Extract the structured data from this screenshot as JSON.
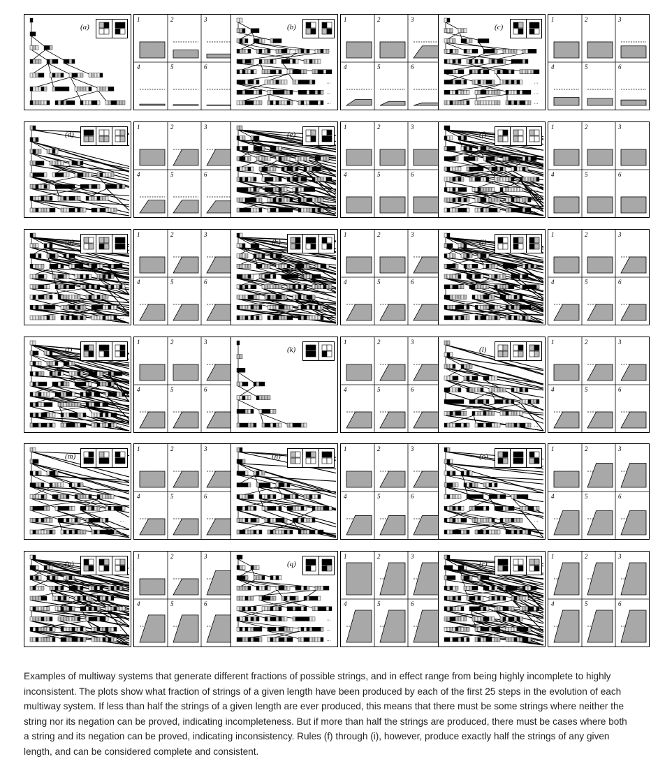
{
  "panels": [
    {
      "label": "(a)",
      "nrules": 2,
      "tree": "sparse",
      "curves": [
        [
          1.0
        ],
        [
          0.5
        ],
        [
          0.25
        ],
        [
          0.08
        ],
        [
          0.05
        ],
        [
          0.03
        ]
      ],
      "step": [
        false,
        false,
        false,
        false,
        false,
        false
      ]
    },
    {
      "label": "(b)",
      "nrules": 2,
      "tree": "medium",
      "curves": [
        [
          1.0
        ],
        [
          1.0
        ],
        [
          0.75
        ],
        [
          0.37
        ],
        [
          0.25
        ],
        [
          0.16
        ]
      ],
      "step": [
        false,
        false,
        true,
        true,
        true,
        true
      ]
    },
    {
      "label": "(c)",
      "nrules": 2,
      "tree": "medium",
      "curves": [
        [
          1.0
        ],
        [
          1.0
        ],
        [
          0.75
        ],
        [
          0.5
        ],
        [
          0.44
        ],
        [
          0.34
        ]
      ],
      "step": [
        false,
        false,
        false,
        false,
        false,
        false
      ]
    },
    {
      "label": "(d)",
      "nrules": 3,
      "tree": "fan",
      "curves": [
        [
          1.0
        ],
        [
          1.0
        ],
        [
          1.0
        ],
        [
          0.8
        ],
        [
          0.8
        ],
        [
          0.75
        ]
      ],
      "step": [
        false,
        true,
        true,
        true,
        true,
        true
      ]
    },
    {
      "label": "(e)",
      "nrules": 2,
      "tree": "dense",
      "curves": [
        [
          1.0
        ],
        [
          1.0
        ],
        [
          1.0
        ],
        [
          1.0
        ],
        [
          1.0
        ],
        [
          1.0
        ]
      ],
      "step": [
        false,
        false,
        false,
        false,
        false,
        false
      ]
    },
    {
      "label": "(f)",
      "nrules": 3,
      "tree": "dense",
      "curves": [
        [
          1.0
        ],
        [
          1.0
        ],
        [
          1.0
        ],
        [
          1.0
        ],
        [
          1.0
        ],
        [
          1.0
        ]
      ],
      "step": [
        false,
        false,
        false,
        false,
        false,
        false
      ]
    },
    {
      "label": "(g)",
      "nrules": 3,
      "tree": "dense",
      "curves": [
        [
          1.0
        ],
        [
          1.0
        ],
        [
          1.0
        ],
        [
          1.0
        ],
        [
          1.0
        ],
        [
          1.0
        ]
      ],
      "step": [
        false,
        true,
        true,
        true,
        true,
        true
      ]
    },
    {
      "label": "(h)",
      "nrules": 3,
      "tree": "dense",
      "curves": [
        [
          1.0
        ],
        [
          1.0
        ],
        [
          1.0
        ],
        [
          1.0
        ],
        [
          1.0
        ],
        [
          1.0
        ]
      ],
      "step": [
        false,
        false,
        true,
        true,
        true,
        true
      ]
    },
    {
      "label": "(i)",
      "nrules": 3,
      "tree": "dense",
      "curves": [
        [
          1.0
        ],
        [
          1.0
        ],
        [
          1.0
        ],
        [
          1.0
        ],
        [
          1.0
        ],
        [
          1.0
        ]
      ],
      "step": [
        false,
        false,
        true,
        true,
        true,
        true
      ]
    },
    {
      "label": "(j)",
      "nrules": 3,
      "tree": "dense",
      "curves": [
        [
          1.0
        ],
        [
          1.0
        ],
        [
          1.0
        ],
        [
          1.0
        ],
        [
          1.0
        ],
        [
          1.0
        ]
      ],
      "step": [
        false,
        false,
        true,
        true,
        true,
        true
      ]
    },
    {
      "label": "(k)",
      "nrules": 2,
      "tree": "sparse2",
      "curves": [
        [
          1.0
        ],
        [
          1.0
        ],
        [
          1.0
        ],
        [
          1.0
        ],
        [
          1.0
        ],
        [
          1.0
        ]
      ],
      "step": [
        false,
        true,
        true,
        true,
        true,
        true
      ]
    },
    {
      "label": "(l)",
      "nrules": 3,
      "tree": "fan",
      "curves": [
        [
          1.0
        ],
        [
          1.0
        ],
        [
          1.0
        ],
        [
          1.0
        ],
        [
          1.0
        ],
        [
          1.0
        ]
      ],
      "step": [
        false,
        true,
        true,
        true,
        true,
        true
      ]
    },
    {
      "label": "(m)",
      "nrules": 3,
      "tree": "fan",
      "curves": [
        [
          1.0
        ],
        [
          1.0
        ],
        [
          1.0
        ],
        [
          1.0
        ],
        [
          1.0
        ],
        [
          1.0
        ]
      ],
      "step": [
        false,
        true,
        true,
        true,
        true,
        true
      ]
    },
    {
      "label": "(n)",
      "nrules": 3,
      "tree": "fan",
      "curves": [
        [
          1.0
        ],
        [
          1.0
        ],
        [
          1.0
        ],
        [
          1.2
        ],
        [
          1.2
        ],
        [
          1.2
        ]
      ],
      "step": [
        false,
        true,
        true,
        true,
        true,
        true
      ]
    },
    {
      "label": "(o)",
      "nrules": 3,
      "tree": "fan",
      "curves": [
        [
          1.0
        ],
        [
          1.5
        ],
        [
          1.5
        ],
        [
          1.5
        ],
        [
          1.5
        ],
        [
          1.5
        ]
      ],
      "step": [
        false,
        true,
        true,
        true,
        true,
        true
      ]
    },
    {
      "label": "(p)",
      "nrules": 3,
      "tree": "dense",
      "curves": [
        [
          1.0
        ],
        [
          1.0
        ],
        [
          1.5
        ],
        [
          1.7
        ],
        [
          1.7
        ],
        [
          1.7
        ]
      ],
      "step": [
        false,
        true,
        true,
        true,
        true,
        true
      ]
    },
    {
      "label": "(q)",
      "nrules": 2,
      "tree": "medium",
      "curves": [
        [
          2.0
        ],
        [
          2.0
        ],
        [
          2.0
        ],
        [
          2.0
        ],
        [
          2.0
        ],
        [
          2.0
        ]
      ],
      "step": [
        false,
        true,
        true,
        true,
        true,
        true
      ]
    },
    {
      "label": "(r)",
      "nrules": 3,
      "tree": "dense",
      "curves": [
        [
          2.0
        ],
        [
          2.0
        ],
        [
          2.0
        ],
        [
          2.0
        ],
        [
          2.0
        ],
        [
          2.0
        ]
      ],
      "step": [
        true,
        true,
        true,
        true,
        true,
        true
      ]
    }
  ],
  "plot_numbers": [
    "1",
    "2",
    "3",
    "4",
    "5",
    "6"
  ],
  "caption": "Examples of multiway systems that generate different fractions of possible strings, and in effect range from being highly incomplete to highly inconsistent. The plots show what fraction of strings of a given length have been produced by each of the first 25 steps in the evolution of each multiway system. If less than half the strings of a given length are ever produced, this means that there must be some strings where neither the string nor its negation can be proved, indicating incompleteness. But if more than half the strings are produced, there must be cases where both a string and its negation can be proved, indicating inconsistency. Rules (f) through (i), however, produce exactly half the strings of any given length, and can be considered complete and consistent.",
  "colors": {
    "fill": "#a8a8a8",
    "black": "#000000",
    "gray": "#bdbdbd",
    "light": "#e6e6e6"
  }
}
